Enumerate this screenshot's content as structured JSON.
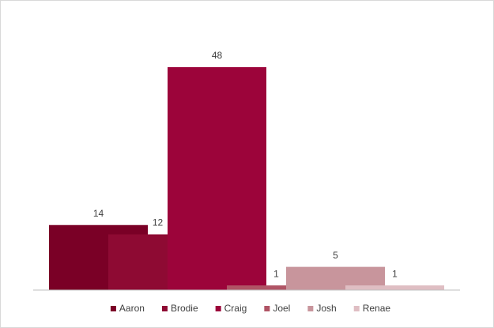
{
  "chart_data": {
    "type": "bar",
    "series": [
      {
        "name": "Aaron",
        "color": "#7a0026",
        "values": [
          14
        ]
      },
      {
        "name": "Brodie",
        "color": "#8e0a33",
        "values": [
          12
        ]
      },
      {
        "name": "Craig",
        "color": "#9c043a",
        "values": [
          48
        ]
      },
      {
        "name": "Joel",
        "color": "#b05465",
        "values": [
          1
        ]
      },
      {
        "name": "Josh",
        "color": "#c8959c",
        "values": [
          5
        ]
      },
      {
        "name": "Renae",
        "color": "#dfbec3",
        "values": [
          1
        ]
      }
    ],
    "ylim": [
      0,
      60
    ],
    "grid": false,
    "legend": "bottom",
    "data_labels": true
  }
}
